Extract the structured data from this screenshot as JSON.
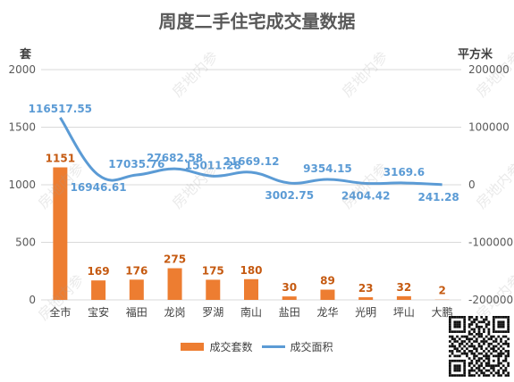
{
  "title": "周度二手住宅成交量数据",
  "watermark_text": "房地内参",
  "chart_data": {
    "type": "bar+line",
    "categories": [
      "全市",
      "宝安",
      "福田",
      "龙岗",
      "罗湖",
      "南山",
      "盐田",
      "龙华",
      "光明",
      "坪山",
      "大鹏"
    ],
    "series": [
      {
        "name": "成交套数",
        "type": "bar",
        "axis": "left",
        "color": "#ED7D31",
        "values": [
          1151,
          169,
          176,
          275,
          175,
          180,
          30,
          89,
          23,
          32,
          2
        ],
        "labels": [
          "1151",
          "169",
          "176",
          "275",
          "175",
          "180",
          "30",
          "89",
          "23",
          "32",
          "2"
        ]
      },
      {
        "name": "成交面积",
        "type": "line",
        "axis": "right",
        "color": "#5B9BD5",
        "values": [
          116517.55,
          16946.61,
          17035.76,
          27682.58,
          15011.28,
          21669.12,
          3002.75,
          9354.15,
          2404.42,
          3169.6,
          241.28
        ],
        "labels": [
          "116517.55",
          "16946.61",
          "17035.76",
          "27682.58",
          "15011.28",
          "21669.12",
          "3002.75",
          "9354.15",
          "2404.42",
          "3169.6",
          "241.28"
        ]
      }
    ],
    "y_left": {
      "label": "套",
      "ylim": [
        0,
        2000
      ],
      "ticks": [
        "0",
        "500",
        "1000",
        "1500",
        "2000"
      ],
      "tick_values": [
        0,
        500,
        1000,
        1500,
        2000
      ]
    },
    "y_right": {
      "label": "平方米",
      "ylim": [
        -200000,
        200000
      ],
      "ticks": [
        "-200000",
        "-100000",
        "0",
        "100000",
        "200000"
      ],
      "tick_values": [
        -200000,
        -100000,
        0,
        100000,
        200000
      ]
    },
    "grid": true,
    "legend": "bottom"
  }
}
